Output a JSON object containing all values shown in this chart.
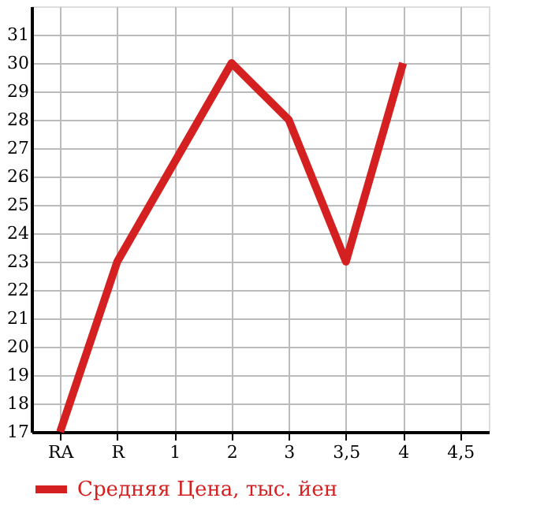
{
  "chart_data": {
    "type": "line",
    "categories": [
      "RA",
      "R",
      "1",
      "2",
      "3",
      "3,5",
      "4",
      "4,5"
    ],
    "series": [
      {
        "name": "Средняя Цена, тыс. йен",
        "color": "#d42020",
        "values": [
          17,
          23,
          26.5,
          30,
          28,
          23,
          30,
          null
        ]
      }
    ],
    "ylim": [
      17,
      32
    ],
    "yticks": [
      17,
      18,
      19,
      20,
      21,
      22,
      23,
      24,
      25,
      26,
      27,
      28,
      29,
      30,
      31
    ],
    "grid": true,
    "legend": "bottom left",
    "marker": "none",
    "line_style": "solid"
  }
}
